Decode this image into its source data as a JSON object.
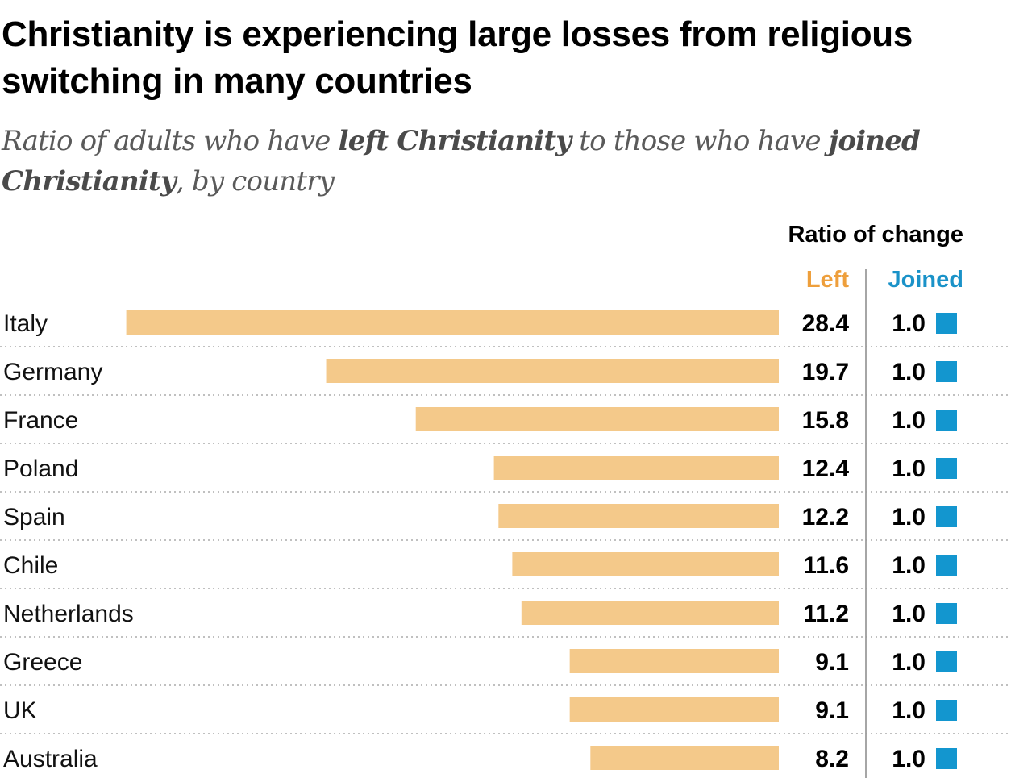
{
  "title": "Christianity is experiencing large losses from religious switching in many countries",
  "subtitle": {
    "p1": "Ratio of adults who have ",
    "b1": "left Christianity",
    "p2": " to those who have ",
    "b2": "joined Christianity",
    "p3": ", by country"
  },
  "chart_data": {
    "type": "bar",
    "header": "Ratio of change",
    "categories": [
      "Italy",
      "Germany",
      "France",
      "Poland",
      "Spain",
      "Chile",
      "Netherlands",
      "Greece",
      "UK",
      "Australia"
    ],
    "series": [
      {
        "name": "Left",
        "values": [
          28.4,
          19.7,
          15.8,
          12.4,
          12.2,
          11.6,
          11.2,
          9.1,
          9.1,
          8.2
        ],
        "color": "#f4c98a"
      },
      {
        "name": "Joined",
        "values": [
          1.0,
          1.0,
          1.0,
          1.0,
          1.0,
          1.0,
          1.0,
          1.0,
          1.0,
          1.0
        ],
        "color": "#1396cf"
      }
    ],
    "left_label_color": "#ee9f3c",
    "joined_label_color": "#1a92c8",
    "label_format": "1 decimal",
    "orientation": "horizontal, bars grow leftward"
  }
}
